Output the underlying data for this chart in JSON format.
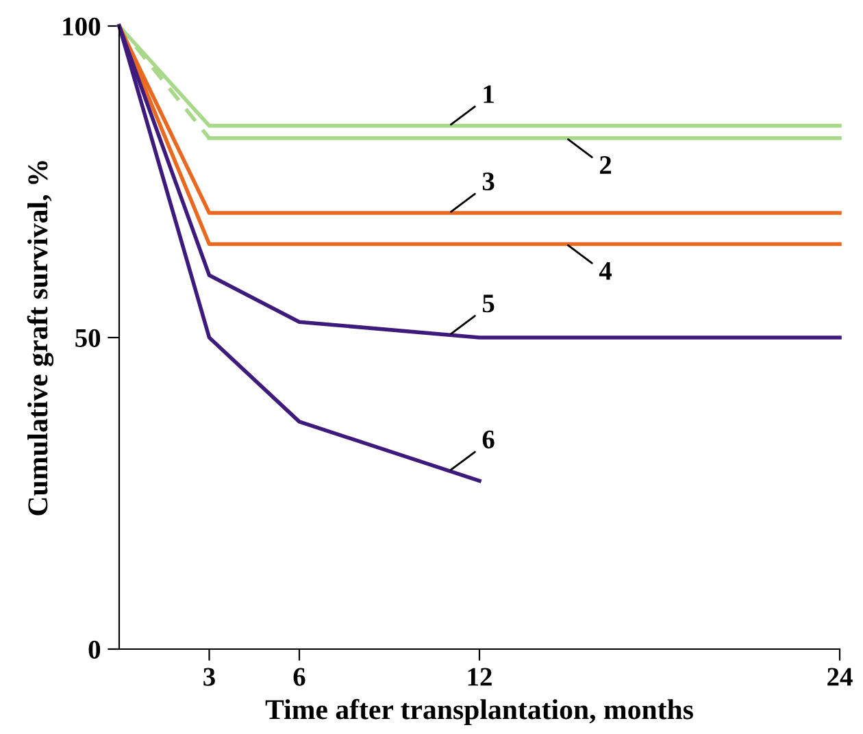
{
  "chart_data": {
    "type": "line",
    "xlabel": "Time after transplantation, months",
    "ylabel": "Cumulative graft survival, %",
    "xlim": [
      0,
      24
    ],
    "ylim": [
      0,
      100
    ],
    "xticks": [
      3,
      6,
      12,
      24
    ],
    "yticks": [
      0,
      50,
      100
    ],
    "grid": false,
    "legend": false,
    "marker": "none",
    "series": [
      {
        "name": "1",
        "color": "#a8d889",
        "x": [
          0,
          3,
          24
        ],
        "values": [
          100,
          84,
          84
        ],
        "line_style": "solid"
      },
      {
        "color": "#a8d889",
        "x": [
          0,
          3
        ],
        "values": [
          100,
          82
        ],
        "line_style": "dashed"
      },
      {
        "name": "2",
        "color": "#a8d889",
        "x": [
          3,
          24
        ],
        "values": [
          82,
          82
        ],
        "line_style": "solid"
      },
      {
        "name": "3",
        "color": "#e8691f",
        "x": [
          0,
          3,
          24
        ],
        "values": [
          100,
          70,
          70
        ],
        "line_style": "solid"
      },
      {
        "name": "4",
        "color": "#e8691f",
        "x": [
          0,
          3,
          24
        ],
        "values": [
          100,
          65,
          65
        ],
        "line_style": "solid"
      },
      {
        "name": "5",
        "color": "#3d1a7c",
        "x": [
          0,
          3,
          6,
          12,
          24
        ],
        "values": [
          100,
          60,
          52.5,
          50,
          50
        ],
        "line_style": "solid"
      },
      {
        "name": "6",
        "color": "#3d1a7c",
        "x": [
          0,
          3,
          6,
          12
        ],
        "values": [
          100,
          50,
          36.5,
          27
        ],
        "line_style": "solid"
      }
    ]
  }
}
